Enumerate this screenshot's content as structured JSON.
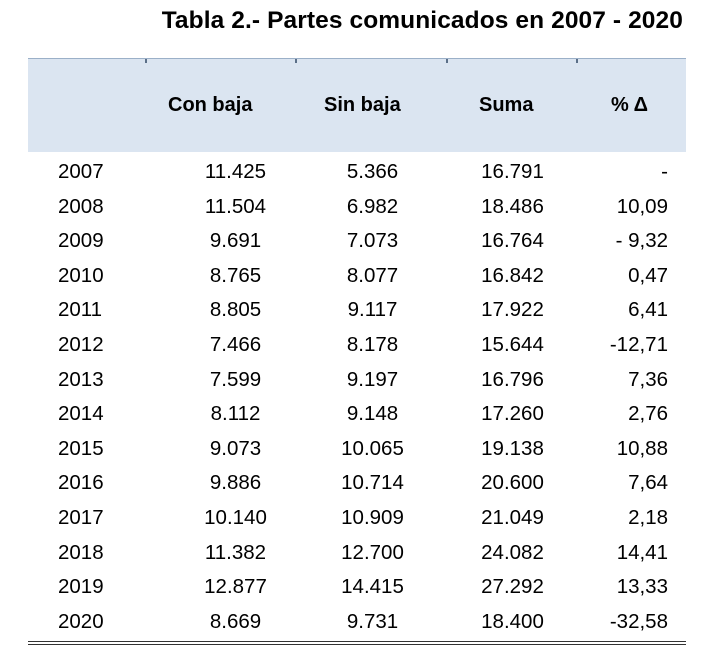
{
  "title": "Tabla 2.- Partes comunicados en 2007 - 2020",
  "columns": {
    "con_baja": "Con baja",
    "sin_baja": "Sin baja",
    "suma": "Suma",
    "pct": "% Δ"
  },
  "rows": [
    {
      "year": "2007",
      "con_baja": "11.425",
      "sin_baja": "5.366",
      "suma": "16.791",
      "pct": "-"
    },
    {
      "year": "2008",
      "con_baja": "11.504",
      "sin_baja": "6.982",
      "suma": "18.486",
      "pct": "10,09"
    },
    {
      "year": "2009",
      "con_baja": "9.691",
      "sin_baja": "7.073",
      "suma": "16.764",
      "pct": "- 9,32"
    },
    {
      "year": "2010",
      "con_baja": "8.765",
      "sin_baja": "8.077",
      "suma": "16.842",
      "pct": "0,47"
    },
    {
      "year": "2011",
      "con_baja": "8.805",
      "sin_baja": "9.117",
      "suma": "17.922",
      "pct": "6,41"
    },
    {
      "year": "2012",
      "con_baja": "7.466",
      "sin_baja": "8.178",
      "suma": "15.644",
      "pct": "-12,71"
    },
    {
      "year": "2013",
      "con_baja": "7.599",
      "sin_baja": "9.197",
      "suma": "16.796",
      "pct": "7,36"
    },
    {
      "year": "2014",
      "con_baja": "8.112",
      "sin_baja": "9.148",
      "suma": "17.260",
      "pct": "2,76"
    },
    {
      "year": "2015",
      "con_baja": "9.073",
      "sin_baja": "10.065",
      "suma": "19.138",
      "pct": "10,88"
    },
    {
      "year": "2016",
      "con_baja": "9.886",
      "sin_baja": "10.714",
      "suma": "20.600",
      "pct": "7,64"
    },
    {
      "year": "2017",
      "con_baja": "10.140",
      "sin_baja": "10.909",
      "suma": "21.049",
      "pct": "2,18"
    },
    {
      "year": "2018",
      "con_baja": "11.382",
      "sin_baja": "12.700",
      "suma": "24.082",
      "pct": "14,41"
    },
    {
      "year": "2019",
      "con_baja": "12.877",
      "sin_baja": "14.415",
      "suma": "27.292",
      "pct": "13,33"
    },
    {
      "year": "2020",
      "con_baja": "8.669",
      "sin_baja": "9.731",
      "suma": "18.400",
      "pct": "-32,58"
    }
  ],
  "colors": {
    "header_band": "#dbe5f1",
    "text": "#000000"
  }
}
